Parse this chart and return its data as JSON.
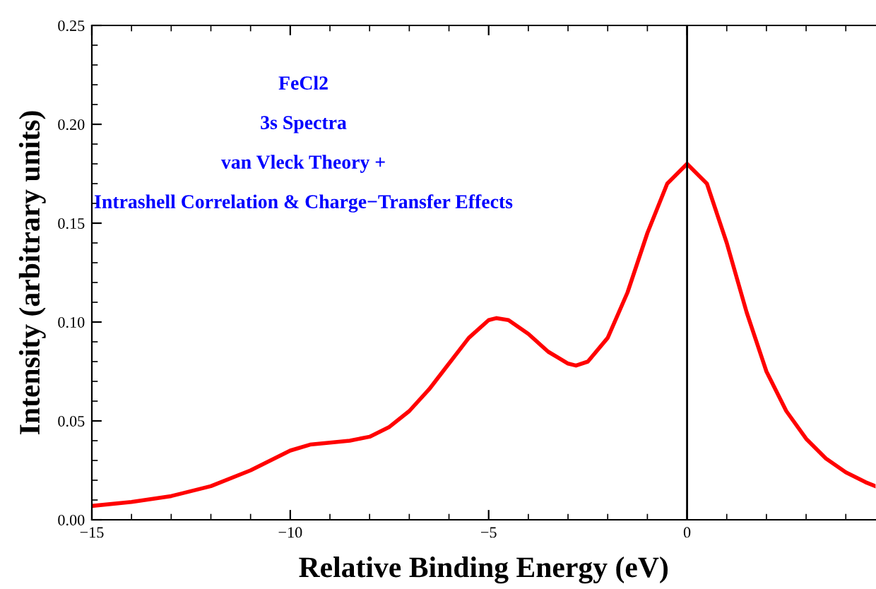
{
  "chart_data": {
    "type": "line",
    "xlabel": "Relative Binding Energy (eV)",
    "ylabel": "Intensity (arbitrary units)",
    "annotations": [
      "FeCl2",
      "3s Spectra",
      "van Vleck Theory +",
      "Intrashell Correlation & Charge−Transfer Effects"
    ],
    "x": [
      -15,
      -14,
      -13,
      -12,
      -11,
      -10,
      -9.5,
      -9,
      -8.5,
      -8,
      -7.5,
      -7,
      -6.5,
      -6,
      -5.5,
      -5,
      -4.8,
      -4.5,
      -4,
      -3.5,
      -3,
      -2.8,
      -2.5,
      -2,
      -1.5,
      -1,
      -0.5,
      0,
      0.5,
      1,
      1.5,
      2,
      2.5,
      3,
      3.5,
      4,
      4.5,
      4.75
    ],
    "series": [
      {
        "color": "#ff0000",
        "values": [
          0.007,
          0.009,
          0.012,
          0.017,
          0.025,
          0.035,
          0.038,
          0.039,
          0.04,
          0.042,
          0.047,
          0.055,
          0.066,
          0.079,
          0.092,
          0.101,
          0.102,
          0.101,
          0.094,
          0.085,
          0.079,
          0.078,
          0.08,
          0.092,
          0.115,
          0.145,
          0.17,
          0.18,
          0.17,
          0.14,
          0.105,
          0.075,
          0.055,
          0.041,
          0.031,
          0.024,
          0.019,
          0.017
        ]
      }
    ],
    "xlim": [
      -15,
      4.75
    ],
    "xticks": [
      {
        "value": -15,
        "label": "−15"
      },
      {
        "value": -10,
        "label": "−10"
      },
      {
        "value": -5,
        "label": "−5"
      },
      0
    ],
    "ylim": [
      0,
      0.25
    ],
    "yticks": [
      {
        "value": 0,
        "label": "0.00"
      },
      0.05,
      {
        "value": 0.1,
        "label": "0.10"
      },
      0.15,
      {
        "value": 0.2,
        "label": "0.20"
      },
      0.25
    ],
    "ref_lines": [
      {
        "axis": "x",
        "value": 0,
        "color": "#000000"
      }
    ],
    "grid": false,
    "legend": false,
    "marker": "none",
    "line_style": "solid"
  }
}
